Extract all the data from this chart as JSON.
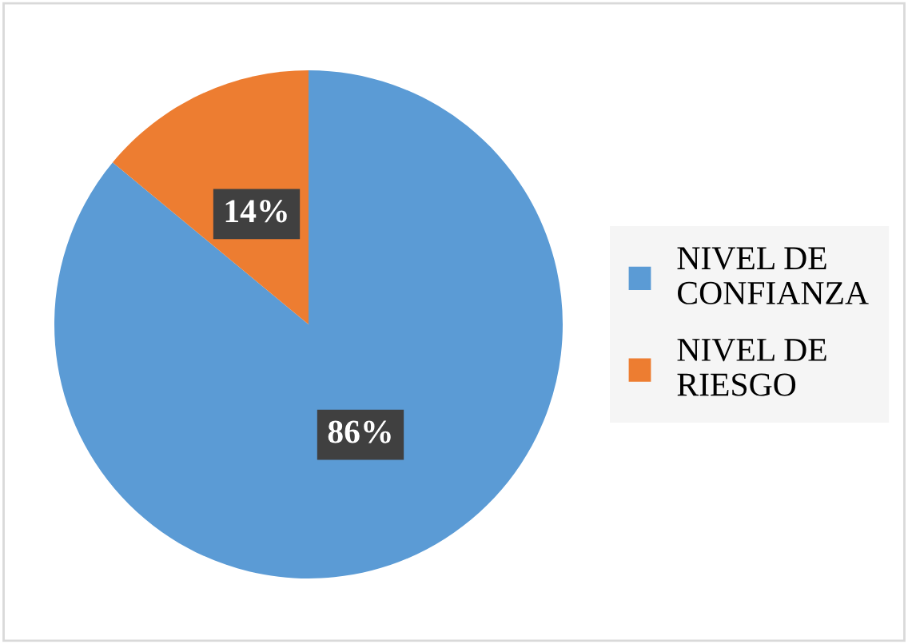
{
  "chart_data": {
    "type": "pie",
    "categories": [
      "NIVEL DE CONFIANZA",
      "NIVEL DE RIESGO"
    ],
    "values": [
      86,
      14
    ],
    "colors": [
      "#5b9bd5",
      "#ed7d31"
    ],
    "value_labels": [
      "86%",
      "14%"
    ],
    "legend": "right"
  }
}
